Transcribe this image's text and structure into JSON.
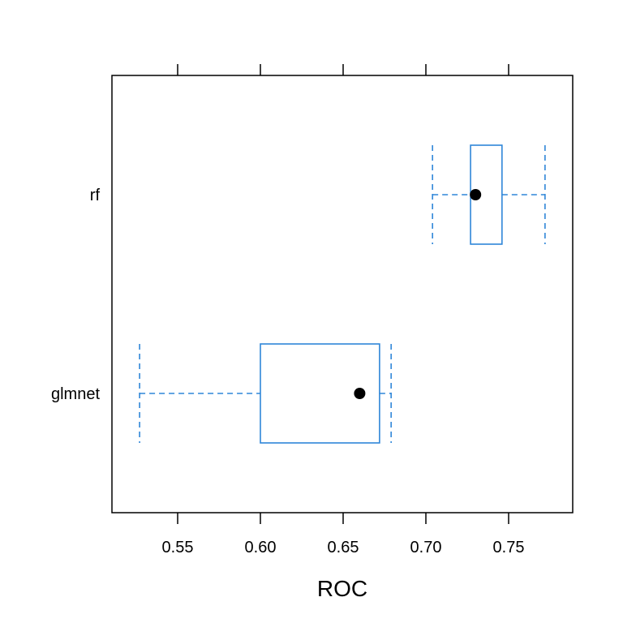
{
  "chart_data": {
    "type": "boxplot",
    "orientation": "horizontal",
    "xlabel": "ROC",
    "xlim": [
      0.512,
      0.789
    ],
    "xticks": [
      0.55,
      0.6,
      0.65,
      0.7,
      0.75
    ],
    "tick_labels": [
      "0.55",
      "0.60",
      "0.65",
      "0.70",
      "0.75"
    ],
    "categories": [
      "glmnet",
      "rf"
    ],
    "boxes": [
      {
        "name": "glmnet",
        "min": 0.527,
        "q1": 0.6,
        "median": 0.66,
        "q3": 0.672,
        "max": 0.679
      },
      {
        "name": "rf",
        "min": 0.704,
        "q1": 0.727,
        "median": 0.73,
        "q3": 0.746,
        "max": 0.772
      }
    ],
    "colors": {
      "box": "#2f86d8",
      "median_dot": "#000000",
      "frame": "#000000"
    }
  }
}
